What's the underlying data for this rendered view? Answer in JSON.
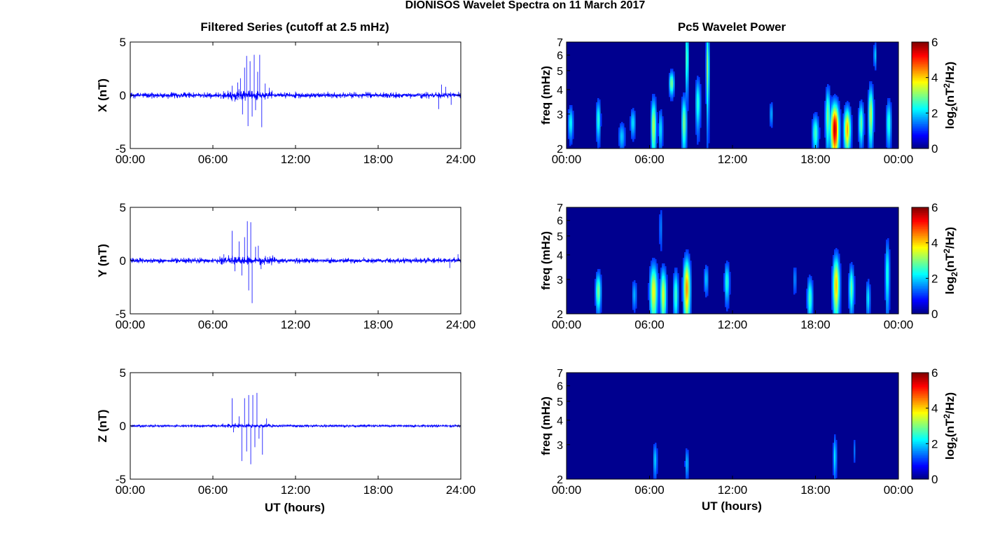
{
  "figure": {
    "title": "DIONISOS Wavelet Spectra on 11 March 2017",
    "left_title": "Filtered Series (cutoff at 2.5 mHz)",
    "right_title": "Pc5 Wavelet Power",
    "xlabel": "UT (hours)"
  },
  "chart_data": [
    {
      "type": "line",
      "panel": "filtered-x",
      "ylabel": "X (nT)",
      "xlim": [
        0,
        24
      ],
      "ylim": [
        -5,
        5
      ],
      "xticks": [
        "00:00",
        "06:00",
        "12:00",
        "18:00",
        "24:00"
      ],
      "yticks": [
        "-5",
        "0",
        "5"
      ],
      "line_color": "#0000ff",
      "background_noise_nT": 0.25,
      "spikes": [
        {
          "t": 7.4,
          "v": 0.9
        },
        {
          "t": 7.6,
          "v": -0.6
        },
        {
          "t": 7.8,
          "v": 1.2
        },
        {
          "t": 8.0,
          "v": 1.6
        },
        {
          "t": 8.15,
          "v": -1.8
        },
        {
          "t": 8.3,
          "v": 2.6
        },
        {
          "t": 8.45,
          "v": 3.7
        },
        {
          "t": 8.55,
          "v": -2.9
        },
        {
          "t": 8.7,
          "v": 3.2
        },
        {
          "t": 8.85,
          "v": -2.0
        },
        {
          "t": 9.0,
          "v": 3.8
        },
        {
          "t": 9.1,
          "v": -1.4
        },
        {
          "t": 9.25,
          "v": 2.2
        },
        {
          "t": 9.4,
          "v": 3.8
        },
        {
          "t": 9.55,
          "v": -3.0
        },
        {
          "t": 9.8,
          "v": 1.1
        },
        {
          "t": 10.1,
          "v": 0.7
        },
        {
          "t": 22.4,
          "v": -1.3
        },
        {
          "t": 22.6,
          "v": 1.0
        },
        {
          "t": 22.9,
          "v": 0.8
        },
        {
          "t": 23.3,
          "v": -0.9
        }
      ]
    },
    {
      "type": "line",
      "panel": "filtered-y",
      "ylabel": "Y (nT)",
      "xlim": [
        0,
        24
      ],
      "ylim": [
        -5,
        5
      ],
      "xticks": [
        "00:00",
        "06:00",
        "12:00",
        "18:00",
        "24:00"
      ],
      "yticks": [
        "-5",
        "0",
        "5"
      ],
      "line_color": "#0000ff",
      "background_noise_nT": 0.22,
      "spikes": [
        {
          "t": 6.8,
          "v": 0.6
        },
        {
          "t": 7.4,
          "v": 2.8
        },
        {
          "t": 7.6,
          "v": -1.0
        },
        {
          "t": 7.9,
          "v": 1.8
        },
        {
          "t": 8.1,
          "v": -1.4
        },
        {
          "t": 8.3,
          "v": 2.2
        },
        {
          "t": 8.5,
          "v": 3.7
        },
        {
          "t": 8.6,
          "v": -2.8
        },
        {
          "t": 8.75,
          "v": 3.6
        },
        {
          "t": 8.85,
          "v": -4.0
        },
        {
          "t": 9.1,
          "v": 1.3
        },
        {
          "t": 9.3,
          "v": 1.4
        },
        {
          "t": 9.5,
          "v": -0.8
        },
        {
          "t": 23.2,
          "v": -0.7
        },
        {
          "t": 23.8,
          "v": 0.6
        }
      ]
    },
    {
      "type": "line",
      "panel": "filtered-z",
      "ylabel": "Z (nT)",
      "xlim": [
        0,
        24
      ],
      "ylim": [
        -5,
        5
      ],
      "xticks": [
        "00:00",
        "06:00",
        "12:00",
        "18:00",
        "24:00"
      ],
      "yticks": [
        "-5",
        "0",
        "5"
      ],
      "line_color": "#0000ff",
      "background_noise_nT": 0.12,
      "spikes": [
        {
          "t": 7.4,
          "v": 2.6
        },
        {
          "t": 7.5,
          "v": -0.6
        },
        {
          "t": 7.9,
          "v": 0.9
        },
        {
          "t": 8.1,
          "v": -3.3
        },
        {
          "t": 8.3,
          "v": 2.6
        },
        {
          "t": 8.45,
          "v": -2.4
        },
        {
          "t": 8.6,
          "v": 2.9
        },
        {
          "t": 8.75,
          "v": -3.6
        },
        {
          "t": 8.9,
          "v": 2.9
        },
        {
          "t": 9.05,
          "v": -2.0
        },
        {
          "t": 9.2,
          "v": 3.1
        },
        {
          "t": 9.35,
          "v": -1.2
        },
        {
          "t": 9.6,
          "v": -2.7
        },
        {
          "t": 9.9,
          "v": 0.7
        }
      ]
    },
    {
      "type": "heatmap",
      "panel": "wavelet-x",
      "ylabel": "freq (mHz)",
      "xlim": [
        0,
        24
      ],
      "ylim_mHz": [
        2,
        7
      ],
      "yscale": "log",
      "xticks": [
        "00:00",
        "06:00",
        "12:00",
        "18:00",
        "00:00"
      ],
      "yticks": [
        "2",
        "3",
        "4",
        "5",
        "6",
        "7"
      ],
      "colorbar": {
        "label": "log2(nT^2/Hz)",
        "range": [
          0,
          6
        ],
        "ticks": [
          "0",
          "2",
          "4",
          "6"
        ],
        "colormap": "jet"
      },
      "background_color": "#00008f",
      "blobs": [
        {
          "t": 0.3,
          "f": 2.7,
          "peak": 1.8,
          "dt": 0.12,
          "df": 0.35
        },
        {
          "t": 2.3,
          "f": 2.8,
          "peak": 2.0,
          "dt": 0.1,
          "df": 0.45
        },
        {
          "t": 4.0,
          "f": 2.3,
          "peak": 1.4,
          "dt": 0.15,
          "df": 0.25
        },
        {
          "t": 4.8,
          "f": 2.7,
          "peak": 1.6,
          "dt": 0.12,
          "df": 0.3
        },
        {
          "t": 6.3,
          "f": 2.6,
          "peak": 3.0,
          "dt": 0.12,
          "df": 0.6
        },
        {
          "t": 6.8,
          "f": 2.5,
          "peak": 1.6,
          "dt": 0.1,
          "df": 0.4
        },
        {
          "t": 7.6,
          "f": 4.3,
          "peak": 2.6,
          "dt": 0.12,
          "df": 0.4
        },
        {
          "t": 8.5,
          "f": 2.7,
          "peak": 2.6,
          "dt": 0.12,
          "df": 0.6
        },
        {
          "t": 8.7,
          "f": 5.8,
          "peak": 2.5,
          "dt": 0.07,
          "df": 1.5
        },
        {
          "t": 9.5,
          "f": 3.4,
          "peak": 2.0,
          "dt": 0.12,
          "df": 0.7
        },
        {
          "t": 10.2,
          "f": 5.2,
          "peak": 2.8,
          "dt": 0.07,
          "df": 1.8
        },
        {
          "t": 14.8,
          "f": 3.0,
          "peak": 1.2,
          "dt": 0.08,
          "df": 0.3
        },
        {
          "t": 18.0,
          "f": 2.4,
          "peak": 2.2,
          "dt": 0.15,
          "df": 0.35
        },
        {
          "t": 18.9,
          "f": 2.9,
          "peak": 2.6,
          "dt": 0.12,
          "df": 0.7
        },
        {
          "t": 19.4,
          "f": 2.5,
          "peak": 5.6,
          "dt": 0.2,
          "df": 0.55
        },
        {
          "t": 20.3,
          "f": 2.5,
          "peak": 4.0,
          "dt": 0.16,
          "df": 0.45
        },
        {
          "t": 21.3,
          "f": 2.7,
          "peak": 2.4,
          "dt": 0.12,
          "df": 0.45
        },
        {
          "t": 22.0,
          "f": 3.0,
          "peak": 3.0,
          "dt": 0.12,
          "df": 0.7
        },
        {
          "t": 22.3,
          "f": 6.0,
          "peak": 1.5,
          "dt": 0.06,
          "df": 0.6
        },
        {
          "t": 23.3,
          "f": 2.7,
          "peak": 2.0,
          "dt": 0.12,
          "df": 0.5
        }
      ]
    },
    {
      "type": "heatmap",
      "panel": "wavelet-y",
      "ylabel": "freq (mHz)",
      "xlim": [
        0,
        24
      ],
      "ylim_mHz": [
        2,
        7
      ],
      "yscale": "log",
      "xticks": [
        "00:00",
        "06:00",
        "12:00",
        "18:00",
        "00:00"
      ],
      "yticks": [
        "2",
        "3",
        "4",
        "5",
        "6",
        "7"
      ],
      "colorbar": {
        "label": "log2(nT^2/Hz)",
        "range": [
          0,
          6
        ],
        "ticks": [
          "0",
          "2",
          "4",
          "6"
        ],
        "colormap": "jet"
      },
      "background_color": "#00008f",
      "blobs": [
        {
          "t": 2.3,
          "f": 2.6,
          "peak": 2.6,
          "dt": 0.13,
          "df": 0.4
        },
        {
          "t": 4.9,
          "f": 2.5,
          "peak": 1.2,
          "dt": 0.12,
          "df": 0.3
        },
        {
          "t": 6.3,
          "f": 2.6,
          "peak": 3.4,
          "dt": 0.18,
          "df": 0.6
        },
        {
          "t": 7.0,
          "f": 2.5,
          "peak": 3.2,
          "dt": 0.14,
          "df": 0.55
        },
        {
          "t": 7.9,
          "f": 2.5,
          "peak": 2.2,
          "dt": 0.12,
          "df": 0.5
        },
        {
          "t": 8.7,
          "f": 2.7,
          "peak": 4.2,
          "dt": 0.16,
          "df": 0.7
        },
        {
          "t": 6.8,
          "f": 5.5,
          "peak": 1.0,
          "dt": 0.06,
          "df": 1.0
        },
        {
          "t": 10.1,
          "f": 3.0,
          "peak": 1.4,
          "dt": 0.1,
          "df": 0.35
        },
        {
          "t": 11.6,
          "f": 2.9,
          "peak": 2.0,
          "dt": 0.12,
          "df": 0.45
        },
        {
          "t": 16.5,
          "f": 3.0,
          "peak": 1.0,
          "dt": 0.08,
          "df": 0.35
        },
        {
          "t": 17.6,
          "f": 2.4,
          "peak": 2.2,
          "dt": 0.13,
          "df": 0.4
        },
        {
          "t": 19.5,
          "f": 2.8,
          "peak": 3.8,
          "dt": 0.16,
          "df": 0.7
        },
        {
          "t": 20.6,
          "f": 2.7,
          "peak": 2.4,
          "dt": 0.12,
          "df": 0.5
        },
        {
          "t": 21.8,
          "f": 2.4,
          "peak": 1.6,
          "dt": 0.1,
          "df": 0.35
        },
        {
          "t": 23.2,
          "f": 3.2,
          "peak": 2.0,
          "dt": 0.1,
          "df": 0.9
        }
      ]
    },
    {
      "type": "heatmap",
      "panel": "wavelet-z",
      "ylabel": "freq (mHz)",
      "xlim": [
        0,
        24
      ],
      "ylim_mHz": [
        2,
        7
      ],
      "yscale": "log",
      "xticks": [
        "00:00",
        "06:00",
        "12:00",
        "18:00",
        "00:00"
      ],
      "yticks": [
        "2",
        "3",
        "4",
        "5",
        "6",
        "7"
      ],
      "colorbar": {
        "label": "log2(nT^2/Hz)",
        "range": [
          0,
          6
        ],
        "ticks": [
          "0",
          "2",
          "4",
          "6"
        ],
        "colormap": "jet"
      },
      "background_color": "#00008f",
      "blobs": [
        {
          "t": 6.4,
          "f": 2.5,
          "peak": 1.4,
          "dt": 0.1,
          "df": 0.35
        },
        {
          "t": 8.7,
          "f": 2.4,
          "peak": 1.3,
          "dt": 0.09,
          "df": 0.3
        },
        {
          "t": 19.4,
          "f": 2.6,
          "peak": 1.6,
          "dt": 0.08,
          "df": 0.45
        },
        {
          "t": 20.8,
          "f": 2.8,
          "peak": 0.8,
          "dt": 0.06,
          "df": 0.3
        }
      ]
    }
  ]
}
